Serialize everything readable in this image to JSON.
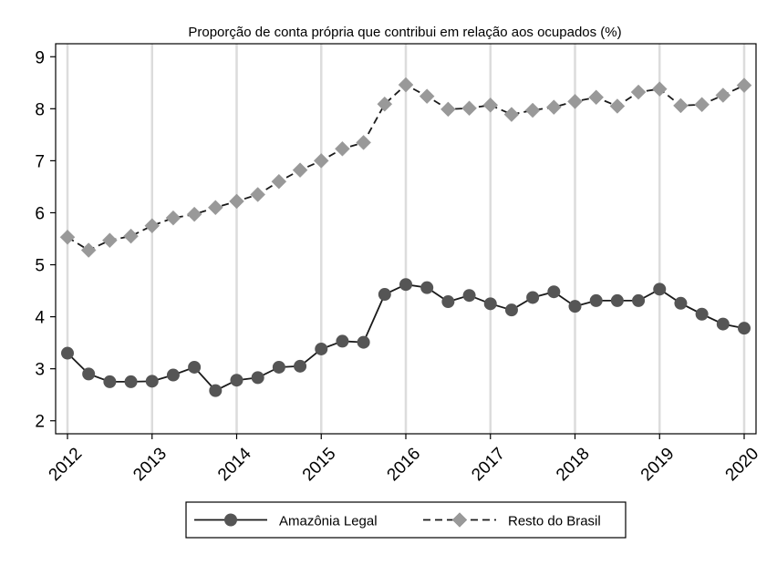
{
  "chart_data": {
    "type": "line",
    "title": "Proporção de conta própria que contribui em relação aos ocupados (%)",
    "xlabel": "",
    "ylabel": "",
    "xlim": [
      2012,
      2020
    ],
    "ylim": [
      1.75,
      9.25
    ],
    "y_ticks": [
      2,
      3,
      4,
      5,
      6,
      7,
      8,
      9
    ],
    "x_ticks": [
      "2012",
      "2013",
      "2014",
      "2015",
      "2016",
      "2017",
      "2018",
      "2019",
      "2020"
    ],
    "grid": "vertical",
    "legend_position": "bottom",
    "x": [
      2012.0,
      2012.25,
      2012.5,
      2012.75,
      2013.0,
      2013.25,
      2013.5,
      2013.75,
      2014.0,
      2014.25,
      2014.5,
      2014.75,
      2015.0,
      2015.25,
      2015.5,
      2015.75,
      2016.0,
      2016.25,
      2016.5,
      2016.75,
      2017.0,
      2017.25,
      2017.5,
      2017.75,
      2018.0,
      2018.25,
      2018.5,
      2018.75,
      2019.0,
      2019.25,
      2019.5,
      2019.75,
      2020.0
    ],
    "series": [
      {
        "name": "Amazônia Legal",
        "color": "#1a1a1a",
        "marker_color": "#555555",
        "marker": "circle",
        "dash": "solid",
        "values": [
          3.3,
          2.9,
          2.75,
          2.75,
          2.76,
          2.88,
          3.03,
          2.58,
          2.78,
          2.83,
          3.03,
          3.05,
          3.38,
          3.53,
          3.51,
          4.43,
          4.62,
          4.56,
          4.29,
          4.41,
          4.25,
          4.13,
          4.37,
          4.48,
          4.2,
          4.31,
          4.31,
          4.31,
          4.53,
          4.26,
          4.05,
          3.86,
          3.78
        ]
      },
      {
        "name": "Resto do Brasil",
        "color": "#1a1a1a",
        "marker_color": "#999999",
        "marker": "diamond",
        "dash": "dashed",
        "values": [
          5.53,
          5.28,
          5.47,
          5.55,
          5.75,
          5.9,
          5.97,
          6.1,
          6.22,
          6.35,
          6.6,
          6.82,
          7.0,
          7.23,
          7.35,
          8.09,
          8.46,
          8.24,
          7.99,
          8.01,
          8.07,
          7.89,
          7.97,
          8.03,
          8.14,
          8.22,
          8.05,
          8.32,
          8.38,
          8.06,
          8.08,
          8.26,
          8.45
        ]
      }
    ]
  }
}
